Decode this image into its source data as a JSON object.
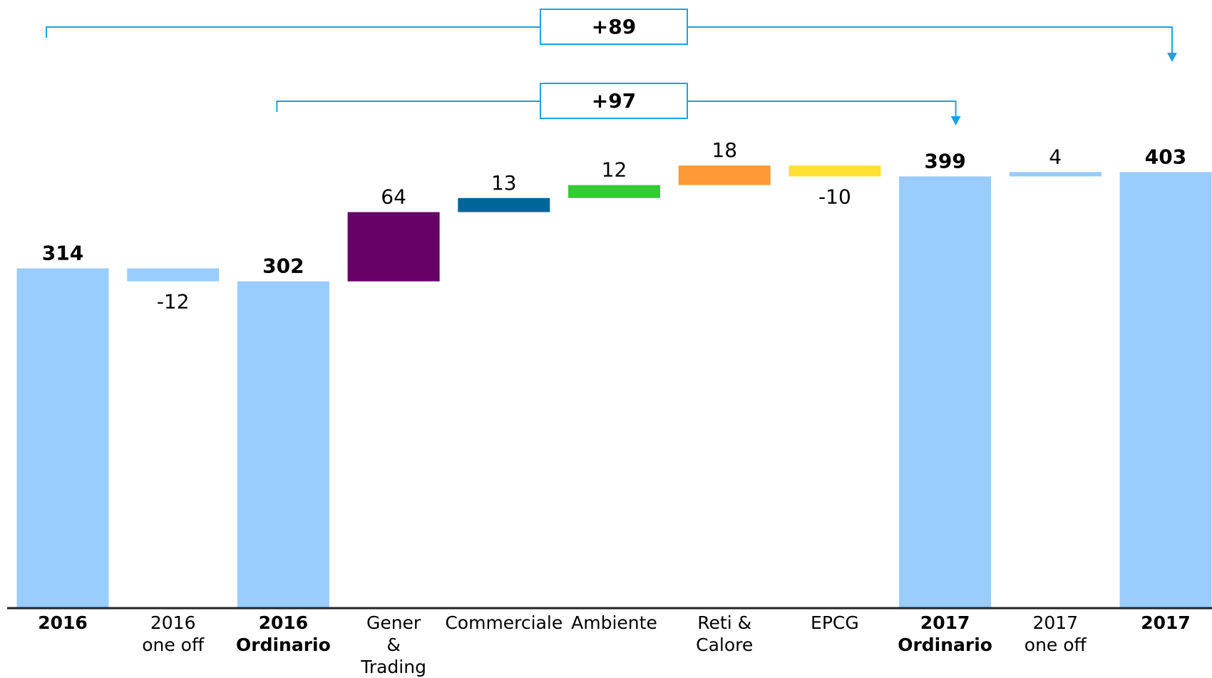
{
  "chart_data": {
    "type": "waterfall",
    "categories": [
      "2016",
      "2016\none off",
      "2016\nOrdinario",
      "Gener\n&\nTrading",
      "Commerciale",
      "Ambiente",
      "Reti &\nCalore",
      "EPCG",
      "2017\nOrdinario",
      "2017\none off",
      "2017"
    ],
    "values": [
      314,
      -12,
      302,
      64,
      13,
      12,
      18,
      -10,
      399,
      4,
      403
    ],
    "measure": [
      "absolute",
      "relative",
      "absolute",
      "relative",
      "relative",
      "relative",
      "relative",
      "relative",
      "absolute",
      "relative",
      "absolute"
    ],
    "colors": [
      "#99ccff",
      "#99ccff",
      "#99ccff",
      "#660066",
      "#006699",
      "#33cc33",
      "#ff9933",
      "#ffe033",
      "#99ccff",
      "#99ccff",
      "#99ccff"
    ],
    "ylim": [
      0,
      562
    ],
    "annotations": [
      {
        "label": "+89",
        "from": 0,
        "to": 10
      },
      {
        "label": "+97",
        "from": 2,
        "to": 8
      }
    ]
  }
}
